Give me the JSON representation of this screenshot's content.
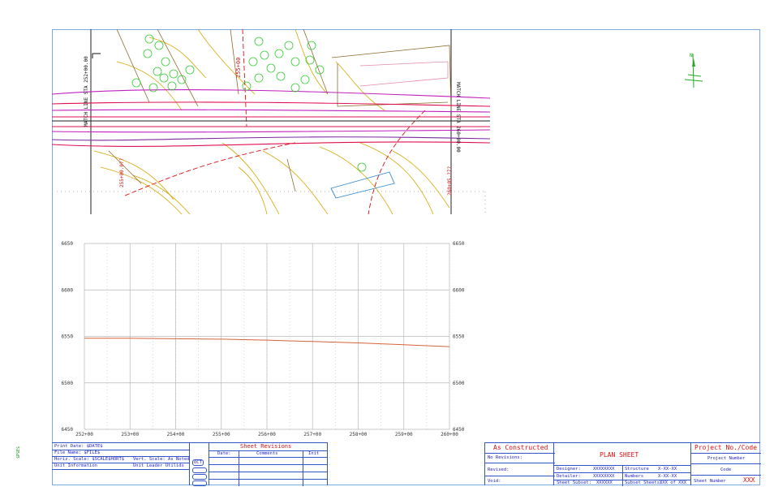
{
  "side_label": "$P$E$",
  "north_label": "N",
  "plan": {
    "match_line_left": "MATCH LINE STA 252+00.00",
    "match_line_right": "MATCH LINE STA 260+00.00",
    "station_label_top": "255+00",
    "station_label_left": "255+00.0??",
    "station_label_right": "260+05.?7?"
  },
  "chart_data": {
    "type": "line",
    "title": "",
    "xlabel": "",
    "ylabel": "",
    "x_ticks": [
      "252+00",
      "253+00",
      "254+00",
      "255+00",
      "256+00",
      "257+00",
      "258+00",
      "259+00",
      "260+00"
    ],
    "y_ticks_left": [
      "6650",
      "6600",
      "6550",
      "6500",
      "6450"
    ],
    "y_ticks_right": [
      "6650",
      "6600",
      "6550",
      "6500",
      "6450"
    ],
    "xlim": [
      252,
      260
    ],
    "ylim": [
      6450,
      6650
    ],
    "grid": true,
    "series": [
      {
        "color": "#d4643a",
        "x": [
          252,
          253,
          254,
          255,
          256,
          257,
          258,
          259,
          260
        ],
        "y": [
          6548,
          6548,
          6547.5,
          6547,
          6546,
          6544.5,
          6543,
          6541,
          6539
        ]
      }
    ]
  },
  "title_block_left": {
    "print_date": "Print Date: $DATE$",
    "file_name": "File Name: $FILE$",
    "horz_scale": "Horiz. Scale: $SCALE$HORT$",
    "vert_scale": "Vert. Scale: As Noted",
    "unit_info": "Unit Information",
    "unit_leader": "Unit Leader Utilids",
    "stamp": "OCT"
  },
  "revisions": {
    "title": "Sheet Revisions",
    "headers": [
      "Date:",
      "Comments",
      "Init"
    ]
  },
  "status": {
    "as_constructed": "As Constructed",
    "no_revisions": "No Revisions:",
    "revised": "Revised:",
    "void": "Void:"
  },
  "plan_sheet": {
    "title": "PLAN SHEET",
    "designer_label": "Designer:",
    "designer_value": "XXXXXXXX",
    "detailer_label": "Detailer:",
    "detailer_value": "XXXXXXXX",
    "subset_label": "Sheet Subset:",
    "subset_value": "XXXXXX",
    "structure_label": "Structure",
    "structure_value": "X-XX-XX",
    "numbers_label": "Numbers",
    "numbers_value": "X-XX-XX",
    "subset_sheets_label": "Subset Sheets:",
    "subset_sheets_value": "XXX of XXX"
  },
  "project": {
    "title": "Project No./Code",
    "project_number": "Project Number",
    "code": "Code",
    "sheet_number_label": "Sheet Number",
    "sheet_number_value": "XXX"
  }
}
